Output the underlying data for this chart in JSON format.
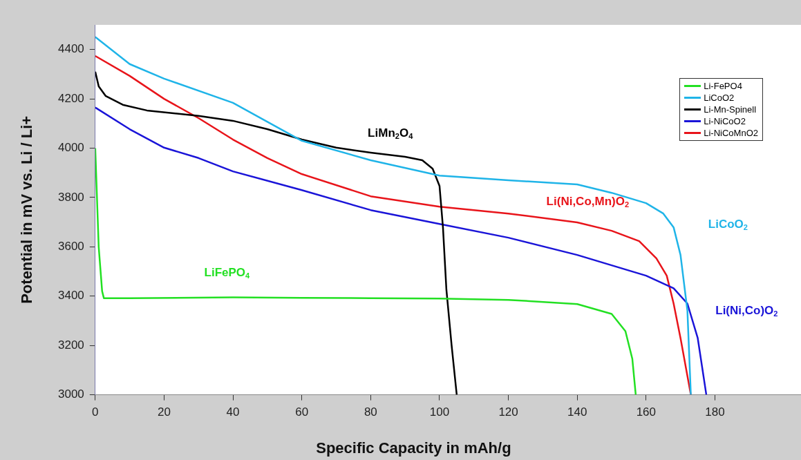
{
  "chart_data": {
    "type": "line",
    "xlabel": "Specific Capacity in mAh/g",
    "ylabel": "Potential in mV vs. Li / Li+",
    "xlim": [
      0,
      205
    ],
    "xticks": [
      0,
      20,
      40,
      60,
      80,
      100,
      120,
      140,
      160,
      180
    ],
    "ylim": [
      3000,
      4500
    ],
    "yticks": [
      3000,
      3200,
      3400,
      3600,
      3800,
      4000,
      4200,
      4400
    ],
    "grid": false,
    "legend": "top right",
    "marker": "none",
    "line_style": "solid",
    "series": [
      {
        "name": "Li-FePO4",
        "color": "#22e022",
        "x": [
          0,
          0.5,
          1,
          2,
          2.5,
          10,
          40,
          60,
          80,
          100,
          120,
          140,
          150,
          154,
          156,
          157
        ],
        "values": [
          4000,
          3800,
          3600,
          3420,
          3392,
          3392,
          3395,
          3393,
          3392,
          3390,
          3385,
          3368,
          3328,
          3258,
          3146,
          3000
        ]
      },
      {
        "name": "LiCoO2",
        "color": "#1fb4e8",
        "x": [
          0,
          10,
          20,
          40,
          60,
          80,
          100,
          120,
          140,
          150,
          160,
          165,
          168,
          170,
          172,
          173
        ],
        "values": [
          4451,
          4341,
          4282,
          4184,
          4030,
          3951,
          3889,
          3870,
          3853,
          3819,
          3777,
          3735,
          3679,
          3567,
          3342,
          3000
        ]
      },
      {
        "name": "Li-Mn-Spinell",
        "color": "#000000",
        "x": [
          0,
          1,
          3,
          8,
          15,
          30,
          40,
          50,
          60,
          70,
          80,
          90,
          95,
          98,
          100,
          101,
          102,
          103.5,
          105
        ],
        "values": [
          4310,
          4251,
          4212,
          4176,
          4153,
          4131,
          4111,
          4077,
          4035,
          4002,
          3982,
          3965,
          3951,
          3917,
          3847,
          3679,
          3426,
          3202,
          3000
        ]
      },
      {
        "name": "Li-NiCoO2",
        "color": "#1a14d8",
        "x": [
          0,
          10,
          20,
          30,
          40,
          60,
          80,
          100,
          120,
          140,
          160,
          168,
          172,
          175,
          177.5
        ],
        "values": [
          4165,
          4077,
          4002,
          3960,
          3906,
          3830,
          3749,
          3693,
          3637,
          3567,
          3483,
          3432,
          3370,
          3230,
          3000
        ]
      },
      {
        "name": "Li-NiCoMnO2",
        "color": "#e8141a",
        "x": [
          0,
          10,
          20,
          30,
          40,
          50,
          60,
          80,
          100,
          120,
          140,
          150,
          158,
          163,
          166,
          168,
          170,
          173
        ],
        "values": [
          4374,
          4293,
          4200,
          4122,
          4035,
          3960,
          3895,
          3805,
          3763,
          3735,
          3699,
          3665,
          3623,
          3553,
          3483,
          3370,
          3230,
          3000
        ]
      }
    ],
    "annotations": [
      "LiMn$_{2}$O$_{4}$",
      "Li(Ni,Co,Mn)O$_{2}$",
      "LiCoO$_{2}$",
      "Li(Ni,Co)O$_{2}$",
      "LiFePO$_{4}$"
    ]
  }
}
